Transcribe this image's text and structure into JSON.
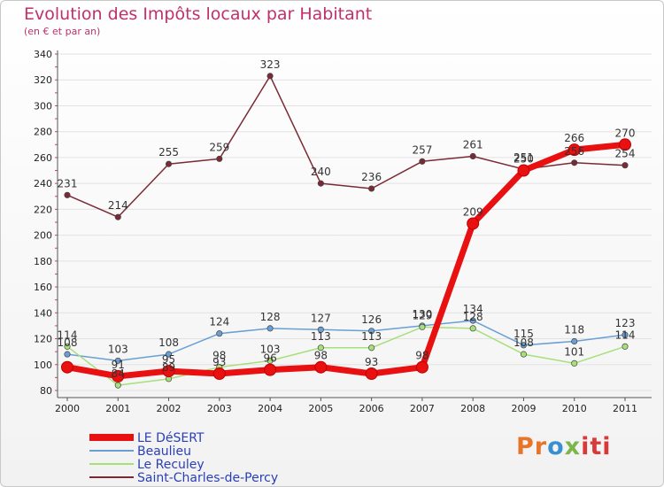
{
  "chart_data": {
    "type": "line",
    "title": "Evolution des Impôts locaux par Habitant",
    "subtitle": "(en € et par an)",
    "categories": [
      "2000",
      "2001",
      "2002",
      "2003",
      "2004",
      "2005",
      "2006",
      "2007",
      "2008",
      "2009",
      "2010",
      "2011"
    ],
    "ylim": [
      80,
      340
    ],
    "yticks": [
      80,
      100,
      120,
      140,
      160,
      180,
      200,
      220,
      240,
      260,
      280,
      300,
      320,
      340
    ],
    "series": [
      {
        "name": "LE DéSERT",
        "color": "#e81010",
        "values": [
          98,
          91,
          95,
          93,
          96,
          98,
          93,
          98,
          209,
          250,
          266,
          270
        ]
      },
      {
        "name": "Beaulieu",
        "color": "#6a9fd4",
        "values": [
          108,
          103,
          108,
          124,
          128,
          127,
          126,
          130,
          134,
          115,
          118,
          123
        ]
      },
      {
        "name": "Le Reculey",
        "color": "#a6e07a",
        "values": [
          114,
          84,
          89,
          98,
          103,
          113,
          113,
          129,
          128,
          108,
          101,
          114
        ]
      },
      {
        "name": "Saint-Charles-de-Percy",
        "color": "#7a2a34",
        "values": [
          231,
          214,
          255,
          259,
          323,
          240,
          236,
          257,
          261,
          251,
          256,
          254
        ]
      }
    ],
    "data_labels": [
      {
        "x": 0,
        "value": 231
      },
      {
        "x": 1,
        "value": 214
      },
      {
        "x": 2,
        "value": 255
      },
      {
        "x": 3,
        "value": 259
      },
      {
        "x": 4,
        "value": 323
      },
      {
        "x": 5,
        "value": 240
      },
      {
        "x": 6,
        "value": 236
      },
      {
        "x": 7,
        "value": 257
      },
      {
        "x": 8,
        "value": 261
      },
      {
        "x": 9,
        "value": 250
      },
      {
        "x": 9,
        "value": 251
      },
      {
        "x": 10,
        "value": 266
      },
      {
        "x": 10,
        "value": 256
      },
      {
        "x": 11,
        "value": 270
      },
      {
        "x": 11,
        "value": 254
      },
      {
        "x": 8,
        "value": 209
      },
      {
        "x": 0,
        "value": 114
      },
      {
        "x": 0,
        "value": 108
      },
      {
        "x": 1,
        "value": 103
      },
      {
        "x": 1,
        "value": 91
      },
      {
        "x": 1,
        "value": 84
      },
      {
        "x": 2,
        "value": 108
      },
      {
        "x": 2,
        "value": 95
      },
      {
        "x": 2,
        "value": 89
      },
      {
        "x": 3,
        "value": 124
      },
      {
        "x": 3,
        "value": 98
      },
      {
        "x": 3,
        "value": 93
      },
      {
        "x": 4,
        "value": 128
      },
      {
        "x": 4,
        "value": 103
      },
      {
        "x": 4,
        "value": 96
      },
      {
        "x": 5,
        "value": 127
      },
      {
        "x": 5,
        "value": 113
      },
      {
        "x": 5,
        "value": 98
      },
      {
        "x": 6,
        "value": 126
      },
      {
        "x": 6,
        "value": 113
      },
      {
        "x": 6,
        "value": 93
      },
      {
        "x": 7,
        "value": 130
      },
      {
        "x": 7,
        "value": 129
      },
      {
        "x": 7,
        "value": 98
      },
      {
        "x": 8,
        "value": 134
      },
      {
        "x": 8,
        "value": 128
      },
      {
        "x": 9,
        "value": 115
      },
      {
        "x": 9,
        "value": 108
      },
      {
        "x": 10,
        "value": 118
      },
      {
        "x": 10,
        "value": 101
      },
      {
        "x": 11,
        "value": 123
      },
      {
        "x": 11,
        "value": 114
      }
    ],
    "legend_position": "bottom-left"
  },
  "logo": {
    "p1": "Pr",
    "p2": "o",
    "p3": "x",
    "p4": "iti"
  }
}
